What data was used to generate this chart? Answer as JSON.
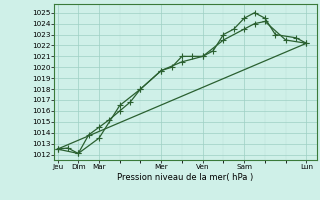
{
  "xlabel": "Pression niveau de la mer( hPa )",
  "bg_color": "#cff0e8",
  "grid_color_major": "#9ecfc4",
  "grid_color_minor": "#b8dfd8",
  "line_color": "#2a6030",
  "ylim": [
    1011.5,
    1025.8
  ],
  "yticks": [
    1012,
    1013,
    1014,
    1015,
    1016,
    1017,
    1018,
    1019,
    1020,
    1021,
    1022,
    1023,
    1024,
    1025
  ],
  "xtick_labels": [
    "Jeu",
    "Dim",
    "Mar",
    "Mer",
    "Ven",
    "Sam",
    "Lun"
  ],
  "xtick_pos": [
    0,
    1,
    2,
    5,
    7,
    9,
    12
  ],
  "xlim": [
    -0.15,
    12.5
  ],
  "line1_x": [
    0,
    0.5,
    1.0,
    1.5,
    2.0,
    2.5,
    3.0,
    3.5,
    4.0,
    5.0,
    5.5,
    6.0,
    6.5,
    7.0,
    7.5,
    8.0,
    8.5,
    9.0,
    9.5,
    10.0,
    10.5,
    11.5,
    12.0
  ],
  "line1_y": [
    1012.5,
    1012.6,
    1012.1,
    1013.8,
    1014.5,
    1015.2,
    1016.0,
    1016.8,
    1018.0,
    1019.7,
    1020.0,
    1021.0,
    1021.0,
    1021.0,
    1021.5,
    1023.0,
    1023.5,
    1024.5,
    1025.0,
    1024.5,
    1023.0,
    1022.7,
    1022.2
  ],
  "line2_x": [
    0,
    1.0,
    2.0,
    3.0,
    4.0,
    5.0,
    6.0,
    7.0,
    8.0,
    9.0,
    9.5,
    10.0,
    11.0,
    12.0
  ],
  "line2_y": [
    1012.5,
    1012.1,
    1013.5,
    1016.5,
    1018.0,
    1019.7,
    1020.5,
    1021.0,
    1022.5,
    1023.5,
    1024.0,
    1024.2,
    1022.5,
    1022.2
  ],
  "line3_x": [
    0,
    12.0
  ],
  "line3_y": [
    1012.5,
    1022.2
  ],
  "ylabel_fontsize": 5.2,
  "xlabel_fontsize": 6.0,
  "xtick_fontsize": 5.2,
  "marker_size": 2.2,
  "line_width": 0.9
}
